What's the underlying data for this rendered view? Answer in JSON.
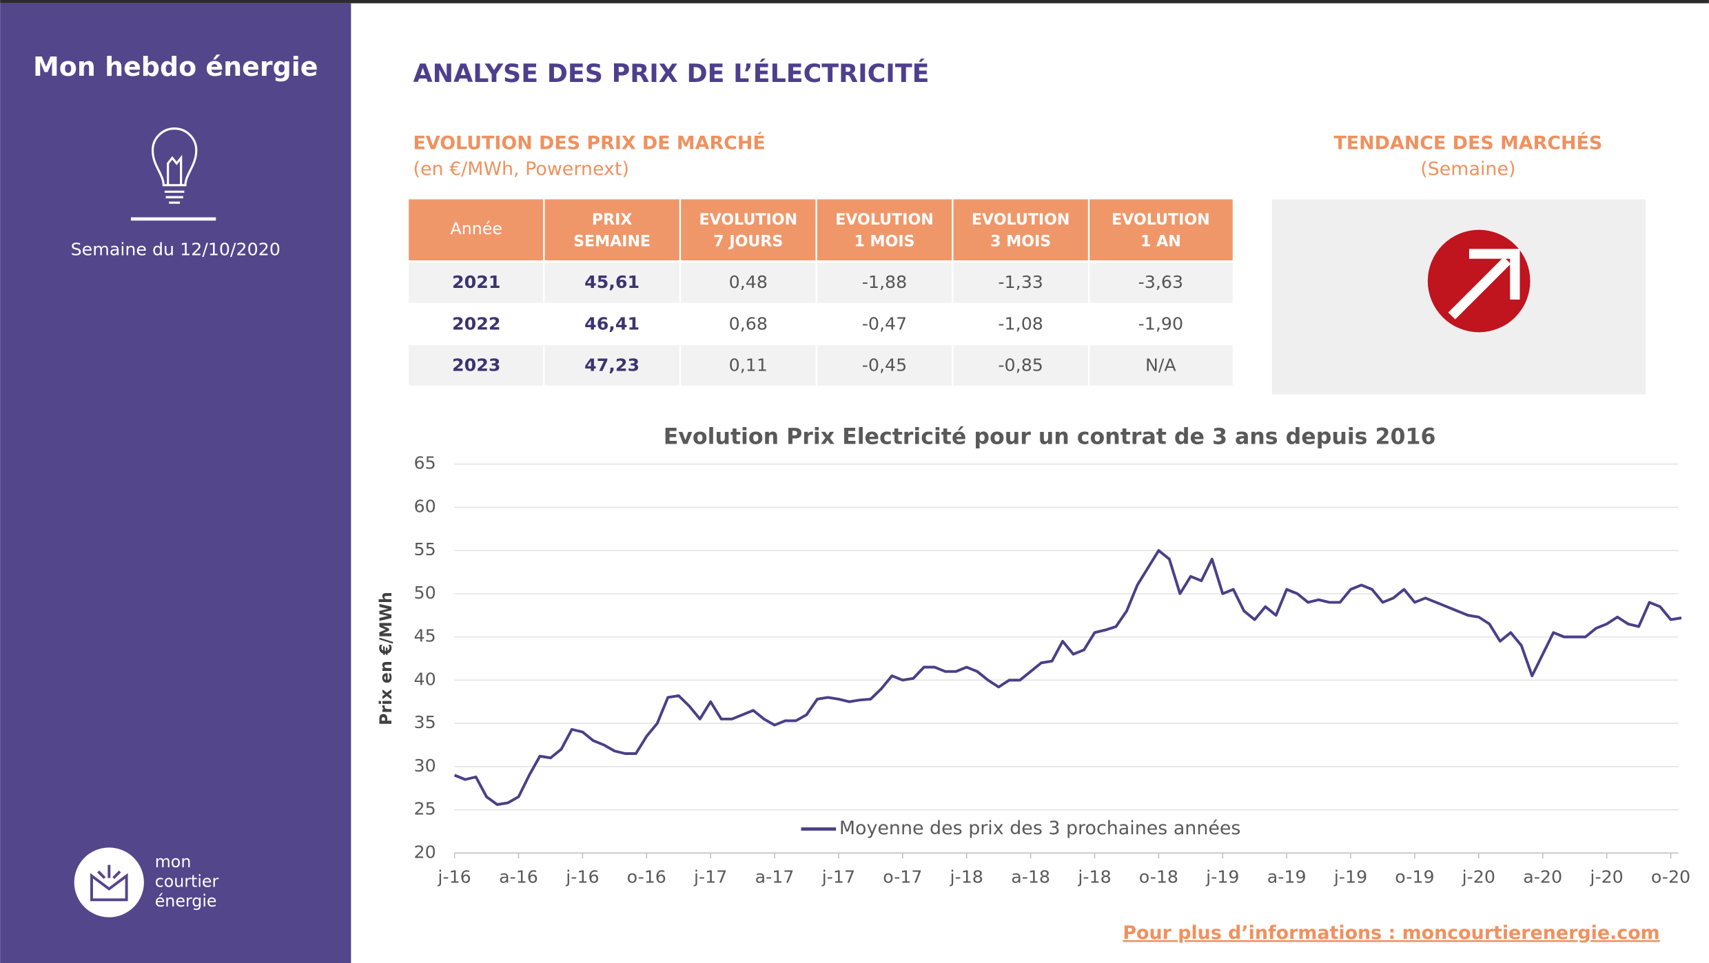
{
  "sidebar": {
    "title": "Mon hebdo énergie",
    "week": "Semaine du 12/10/2020",
    "logo": [
      "mon",
      "courtier",
      "énergie"
    ]
  },
  "header": {
    "title": "ANALYSE DES PRIX DE L’ÉLECTRICITÉ"
  },
  "market": {
    "title": "EVOLUTION DES PRIX DE MARCHÉ",
    "subtitle": "(en €/MWh, Powernext)"
  },
  "table": {
    "columns": [
      [
        "Année"
      ],
      [
        "PRIX",
        "SEMAINE"
      ],
      [
        "EVOLUTION",
        "7 JOURS"
      ],
      [
        "EVOLUTION",
        "1 MOIS"
      ],
      [
        "EVOLUTION",
        "3 MOIS"
      ],
      [
        "EVOLUTION",
        "1 AN"
      ]
    ],
    "rows": [
      [
        "2021",
        "45,61",
        "0,48",
        "-1,88",
        "-1,33",
        "-3,63"
      ],
      [
        "2022",
        "46,41",
        "0,68",
        "-0,47",
        "-1,08",
        "-1,90"
      ],
      [
        "2023",
        "47,23",
        "0,11",
        "-0,45",
        "-0,85",
        "N/A"
      ]
    ]
  },
  "trend": {
    "title": "TENDANCE DES MARCHÉS",
    "subtitle": "(Semaine)"
  },
  "chart_data": {
    "type": "line",
    "title": "Evolution Prix Electricité pour un contrat de 3 ans depuis 2016",
    "y_label": "Prix en €/MWh",
    "ylim": [
      20,
      65
    ],
    "yticks": [
      20,
      25,
      30,
      35,
      40,
      45,
      50,
      55,
      60,
      65
    ],
    "grid": true,
    "legend": "bottom",
    "categories": [
      "j-16",
      null,
      null,
      null,
      null,
      null,
      "a-16",
      null,
      null,
      null,
      null,
      null,
      "j-16",
      null,
      null,
      null,
      null,
      null,
      "o-16",
      null,
      null,
      null,
      null,
      null,
      "j-17",
      null,
      null,
      null,
      null,
      null,
      "a-17",
      null,
      null,
      null,
      null,
      null,
      "j-17",
      null,
      null,
      null,
      null,
      null,
      "o-17",
      null,
      null,
      null,
      null,
      null,
      "j-18",
      null,
      null,
      null,
      null,
      null,
      "a-18",
      null,
      null,
      null,
      null,
      null,
      "j-18",
      null,
      null,
      null,
      null,
      null,
      "o-18",
      null,
      null,
      null,
      null,
      null,
      "j-19",
      null,
      null,
      null,
      null,
      null,
      "a-19",
      null,
      null,
      null,
      null,
      null,
      "j-19",
      null,
      null,
      null,
      null,
      null,
      "o-19",
      null,
      null,
      null,
      null,
      null,
      "j-20",
      null,
      null,
      null,
      null,
      null,
      "a-20",
      null,
      null,
      null,
      null,
      null,
      "j-20",
      null,
      null,
      null,
      null,
      null,
      "o-20",
      null
    ],
    "series": [
      {
        "name": "Moyenne des prix des 3 prochaines années",
        "color": "#4b3f87",
        "values": [
          29,
          28.5,
          28.8,
          26.5,
          25.6,
          25.8,
          26.5,
          29,
          31.2,
          31,
          32,
          34.3,
          34,
          33,
          32.5,
          31.8,
          31.5,
          31.5,
          33.5,
          35,
          38,
          38.2,
          37,
          35.5,
          37.5,
          35.5,
          35.5,
          36,
          36.5,
          35.5,
          34.8,
          35.3,
          35.3,
          36,
          37.8,
          38,
          37.8,
          37.5,
          37.7,
          37.8,
          39,
          40.5,
          40,
          40.2,
          41.5,
          41.5,
          41,
          41,
          41.5,
          41,
          40,
          39.2,
          40,
          40,
          41,
          42,
          42.2,
          44.5,
          43,
          43.5,
          45.5,
          45.8,
          46.2,
          48,
          51,
          53,
          55,
          54,
          50,
          52,
          51.5,
          54,
          50,
          50.5,
          48,
          47,
          48.5,
          47.5,
          50.5,
          50,
          49,
          49.3,
          49,
          49,
          50.5,
          51,
          50.5,
          49,
          49.5,
          50.5,
          49,
          49.5,
          49,
          48.5,
          48,
          47.5,
          47.3,
          46.5,
          44.5,
          45.5,
          44,
          40.5,
          43,
          45.5,
          45,
          45,
          45,
          46,
          46.5,
          47.3,
          46.5,
          46.2,
          49,
          48.5,
          47,
          47.2
        ]
      }
    ]
  },
  "footer": {
    "link": "Pour plus d’informations : moncourtierenergie.com"
  }
}
